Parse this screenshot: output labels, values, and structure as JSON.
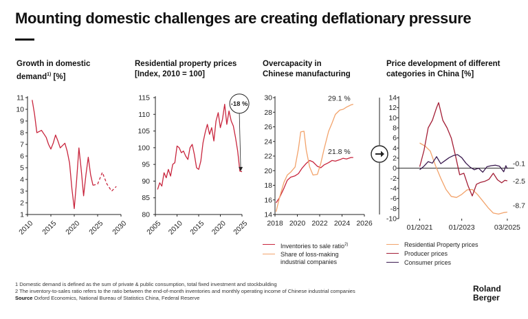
{
  "title": "Mounting domestic challenges are creating deflationary pressure",
  "colors": {
    "red": "#c8243c",
    "orange": "#f2a26a",
    "darkred": "#a31d35",
    "purple": "#3a1a4f",
    "axis": "#222222"
  },
  "arrow_icon": "right-arrow-circle-icon",
  "chart_data": [
    {
      "type": "line",
      "title_line1": "Growth in domestic",
      "title_line2": "demand",
      "title_sup": "1)",
      "title_unit": " [%]",
      "xlim": [
        2010,
        2030
      ],
      "ylim": [
        1,
        11
      ],
      "xticks": [
        "2010",
        "2015",
        "2020",
        "2025",
        "2030"
      ],
      "yticks": [
        "1",
        "2",
        "3",
        "4",
        "5",
        "6",
        "7",
        "8",
        "9",
        "10",
        "11"
      ],
      "series": [
        {
          "style": "solid",
          "color": "#c8243c",
          "x": [
            2011.0,
            2011.5,
            2012.0,
            2012.5,
            2013.0,
            2013.5,
            2014.0,
            2014.5,
            2015.0,
            2015.5,
            2016.0,
            2016.5,
            2017.0,
            2017.5,
            2018.0,
            2018.5,
            2019.0,
            2019.5,
            2020.0,
            2020.5,
            2021.0,
            2021.5,
            2022.0,
            2022.5,
            2023.0,
            2023.5,
            2024.0
          ],
          "y": [
            10.8,
            9.6,
            8.0,
            8.1,
            8.2,
            7.9,
            7.6,
            7.0,
            6.6,
            7.1,
            7.8,
            7.3,
            6.7,
            6.9,
            7.1,
            6.4,
            5.4,
            3.2,
            1.5,
            3.9,
            6.7,
            4.8,
            2.6,
            4.4,
            5.9,
            4.4,
            3.5
          ]
        },
        {
          "style": "dashed",
          "color": "#c8243c",
          "x": [
            2024.0,
            2025.0,
            2026.0,
            2027.0,
            2028.0,
            2029.0
          ],
          "y": [
            3.5,
            3.6,
            4.6,
            3.6,
            3.0,
            3.4
          ]
        }
      ]
    },
    {
      "type": "line",
      "title_line1": "Residential property prices",
      "title_line2": "[Index, 2010 = 100]",
      "xlim": [
        2005,
        2025
      ],
      "ylim": [
        80,
        115
      ],
      "xticks": [
        "2005",
        "2010",
        "2015",
        "2020",
        "2025"
      ],
      "yticks": [
        "80",
        "85",
        "90",
        "95",
        "100",
        "105",
        "110",
        "115"
      ],
      "annotation": "-18 %",
      "annotation_start": [
        2022.3,
        113.0
      ],
      "annotation_end": [
        2024.7,
        92.8
      ],
      "series": [
        {
          "style": "solid",
          "color": "#c8243c",
          "x": [
            2005.5,
            2006.0,
            2006.5,
            2007.0,
            2007.5,
            2008.0,
            2008.5,
            2009.0,
            2009.5,
            2010.0,
            2010.5,
            2011.0,
            2011.5,
            2012.0,
            2012.5,
            2013.0,
            2013.5,
            2014.0,
            2014.5,
            2015.0,
            2015.5,
            2016.0,
            2016.5,
            2017.0,
            2017.5,
            2018.0,
            2018.5,
            2019.0,
            2019.5,
            2020.0,
            2020.5,
            2021.0,
            2021.5,
            2022.0,
            2022.5,
            2023.0,
            2023.5,
            2024.0,
            2024.5,
            2025.0
          ],
          "y": [
            87.5,
            89.5,
            88.5,
            92.5,
            91.0,
            93.5,
            91.5,
            95.0,
            95.5,
            100.5,
            100.0,
            98.5,
            99.0,
            97.5,
            96.5,
            100.0,
            101.0,
            98.0,
            94.0,
            93.5,
            96.0,
            101.5,
            104.5,
            107.0,
            104.0,
            106.0,
            102.0,
            108.0,
            110.5,
            106.0,
            108.5,
            113.0,
            107.0,
            111.0,
            108.0,
            106.5,
            103.0,
            99.0,
            93.0,
            92.8
          ]
        }
      ]
    },
    {
      "type": "line",
      "title_line1": "Overcapacity in",
      "title_line2": "Chinese manufacturing",
      "xlim": [
        2018,
        2026
      ],
      "ylim": [
        14,
        30
      ],
      "xticks": [
        "2018",
        "2020",
        "2022",
        "2024",
        "2026"
      ],
      "yticks": [
        "14",
        "16",
        "18",
        "20",
        "22",
        "24",
        "26",
        "28",
        "30"
      ],
      "series": [
        {
          "name": "Inventories to sale ratio",
          "name_sup": "2)",
          "style": "solid",
          "color": "#c8243c",
          "end_label": "21.8 %",
          "x": [
            2018.1,
            2018.4,
            2018.8,
            2019.1,
            2019.4,
            2019.8,
            2020.1,
            2020.4,
            2020.8,
            2021.1,
            2021.4,
            2021.8,
            2022.1,
            2022.4,
            2022.8,
            2023.1,
            2023.4,
            2023.8,
            2024.1,
            2024.4,
            2024.8,
            2025.0
          ],
          "y": [
            15.6,
            16.3,
            17.6,
            18.7,
            19.1,
            19.3,
            19.6,
            20.3,
            21.0,
            21.4,
            21.2,
            20.6,
            20.4,
            20.8,
            21.1,
            21.4,
            21.3,
            21.5,
            21.7,
            21.6,
            21.8,
            21.8
          ]
        },
        {
          "name_line1": "Share of loss-making",
          "name_line2": "industrial companies",
          "style": "solid",
          "color": "#f2a26a",
          "end_label": "29.1 %",
          "x": [
            2018.1,
            2018.4,
            2018.8,
            2019.1,
            2019.4,
            2019.8,
            2020.1,
            2020.3,
            2020.6,
            2020.8,
            2021.1,
            2021.4,
            2021.8,
            2022.1,
            2022.4,
            2022.8,
            2023.1,
            2023.4,
            2023.8,
            2024.1,
            2024.4,
            2024.8,
            2025.0
          ],
          "y": [
            14.4,
            16.3,
            18.4,
            19.4,
            19.8,
            20.5,
            23.0,
            25.3,
            25.4,
            22.8,
            20.5,
            19.4,
            19.5,
            21.0,
            23.0,
            25.4,
            26.5,
            27.7,
            28.3,
            28.4,
            28.7,
            29.0,
            29.1
          ]
        }
      ]
    },
    {
      "type": "line",
      "title_line1": "Price development of different",
      "title_line2": "categories in China [%]",
      "xlim": [
        2020.0,
        2025.5
      ],
      "ylim": [
        -10,
        14
      ],
      "xticks": [
        "01/2021",
        "01/2023",
        "03/2025"
      ],
      "xtick_pos": [
        2021.0,
        2023.0,
        2025.17
      ],
      "yticks": [
        "-10",
        "-8",
        "-6",
        "-4",
        "-2",
        "0",
        "2",
        "4",
        "6",
        "8",
        "10",
        "12",
        "14"
      ],
      "series": [
        {
          "name": "Residential Property prices",
          "style": "solid",
          "color": "#f2a26a",
          "end_label": "-8.7",
          "x": [
            2021.0,
            2021.25,
            2021.5,
            2021.75,
            2022.0,
            2022.25,
            2022.5,
            2022.75,
            2023.0,
            2023.25,
            2023.5,
            2023.75,
            2024.0,
            2024.25,
            2024.5,
            2024.75,
            2025.0,
            2025.17
          ],
          "y": [
            5.0,
            4.4,
            3.4,
            0.5,
            -2.0,
            -4.2,
            -5.6,
            -5.8,
            -5.2,
            -4.3,
            -4.2,
            -5.2,
            -6.5,
            -7.8,
            -8.9,
            -9.1,
            -8.8,
            -8.7
          ]
        },
        {
          "name": "Producer prices",
          "style": "solid",
          "color": "#a31d35",
          "end_label": "-2.5",
          "x": [
            2021.0,
            2021.2,
            2021.4,
            2021.6,
            2021.8,
            2021.9,
            2022.1,
            2022.3,
            2022.5,
            2022.7,
            2022.9,
            2023.1,
            2023.3,
            2023.5,
            2023.7,
            2023.9,
            2024.1,
            2024.3,
            2024.5,
            2024.7,
            2024.9,
            2025.05,
            2025.17
          ],
          "y": [
            0.3,
            3.5,
            8.0,
            9.5,
            12.0,
            13.0,
            9.5,
            8.0,
            6.0,
            2.5,
            -1.3,
            -1.0,
            -3.5,
            -5.5,
            -3.2,
            -2.8,
            -2.6,
            -2.2,
            -1.0,
            -2.3,
            -2.9,
            -2.4,
            -2.5
          ]
        },
        {
          "name": "Consumer prices",
          "style": "solid",
          "color": "#3a1a4f",
          "end_label": "-0.1",
          "x": [
            2021.0,
            2021.2,
            2021.4,
            2021.6,
            2021.8,
            2022.0,
            2022.2,
            2022.4,
            2022.6,
            2022.8,
            2023.0,
            2023.2,
            2023.4,
            2023.6,
            2023.8,
            2024.0,
            2024.2,
            2024.4,
            2024.6,
            2024.8,
            2025.0,
            2025.1,
            2025.17
          ],
          "y": [
            -0.3,
            0.4,
            1.3,
            1.0,
            2.3,
            0.9,
            1.5,
            2.1,
            2.5,
            2.7,
            2.1,
            1.0,
            0.2,
            -0.3,
            0.0,
            -0.8,
            0.3,
            0.5,
            0.6,
            0.4,
            -0.7,
            0.5,
            -0.1
          ]
        }
      ]
    }
  ],
  "footnotes": {
    "line1": "1 Domestic demand is defined as the sum of private & public consumption, total fixed investment and stockbuilding",
    "line2": "2 The inventory-to-sales ratio refers to the ratio between the end-of-month inventories and monthly operating income of Chinese industrial companies",
    "source_label": "Source",
    "source_text": " Oxford Economics, National Bureau of Statistics China, Federal Reserve"
  },
  "logo": {
    "line1": "Roland",
    "line2": "Berger"
  }
}
